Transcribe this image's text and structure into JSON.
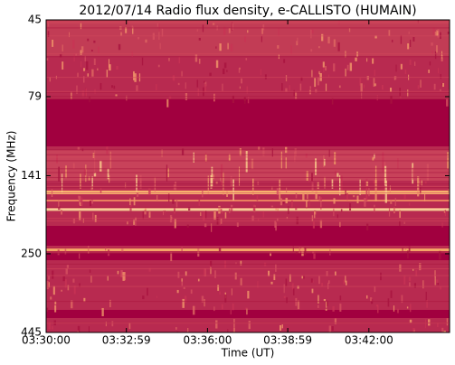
{
  "chart_data": {
    "type": "spectrogram",
    "title": "2012/07/14  Radio flux density, e-CALLISTO (HUMAIN)",
    "xlabel": "Time (UT)",
    "ylabel": "Frequency (MHz)",
    "xlim": [
      "03:30:00",
      "03:45:00"
    ],
    "xticks": [
      "03:30:00",
      "03:32:59",
      "03:36:00",
      "03:38:59",
      "03:42:00"
    ],
    "ylim": [
      45,
      445
    ],
    "yticks": [
      45,
      79,
      141,
      250,
      445
    ],
    "yscale": "log",
    "yreversed": true
  }
}
